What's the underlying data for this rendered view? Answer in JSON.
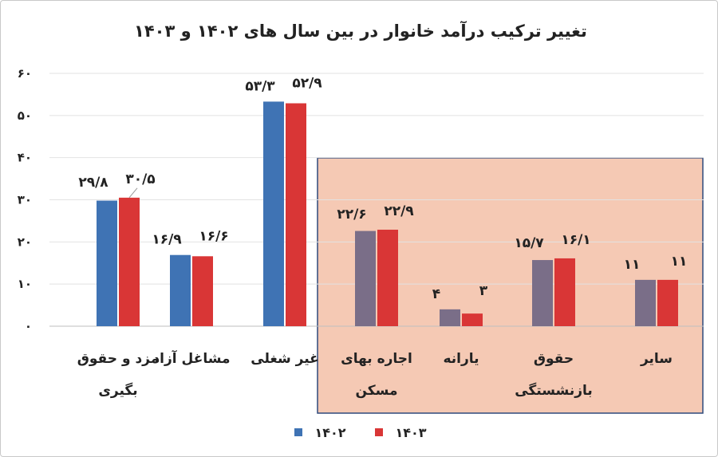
{
  "chart_data": {
    "type": "bar",
    "title": "تغییر ترکیب درآمد خانوار در بین سال های ۱۴۰۲ و ۱۴۰۳",
    "categories": [
      [
        "مزد و حقوق",
        "بگیری"
      ],
      [
        "مشاغل آزاد"
      ],
      [
        "غیر شغلی"
      ],
      [
        "اجاره بهای",
        "مسکن"
      ],
      [
        "یارانه"
      ],
      [
        "حقوق",
        "بازنشستگی"
      ],
      [
        "سایر"
      ]
    ],
    "series": [
      {
        "name": "۱۴۰۲",
        "values": [
          29.8,
          16.9,
          53.3,
          22.6,
          4,
          15.7,
          11
        ],
        "labels": [
          "۲۹/۸",
          "۱۶/۹",
          "۵۳/۳",
          "۲۲/۶",
          "۴",
          "۱۵/۷",
          "۱۱"
        ],
        "color": "#3f73b4",
        "highlight_color": "#7a6e88"
      },
      {
        "name": "۱۴۰۳",
        "values": [
          30.5,
          16.6,
          52.9,
          22.9,
          3,
          16.1,
          11
        ],
        "labels": [
          "۳۰/۵",
          "۱۶/۶",
          "۵۲/۹",
          "۲۲/۹",
          "۳",
          "۱۶/۱",
          "۱۱"
        ],
        "color": "#d93636"
      }
    ],
    "y_ticks": [
      0,
      10,
      20,
      30,
      40,
      50,
      60
    ],
    "y_tick_labels": [
      "۰",
      "۱۰",
      "۲۰",
      "۳۰",
      "۴۰",
      "۵۰",
      "۶۰"
    ],
    "ylim": [
      0,
      60
    ],
    "grid": true,
    "legend": "bottom-center",
    "highlight": {
      "categories": [
        3,
        4,
        5,
        6
      ],
      "fill": "#f5c9b4",
      "border": "#2e4a7d"
    }
  }
}
